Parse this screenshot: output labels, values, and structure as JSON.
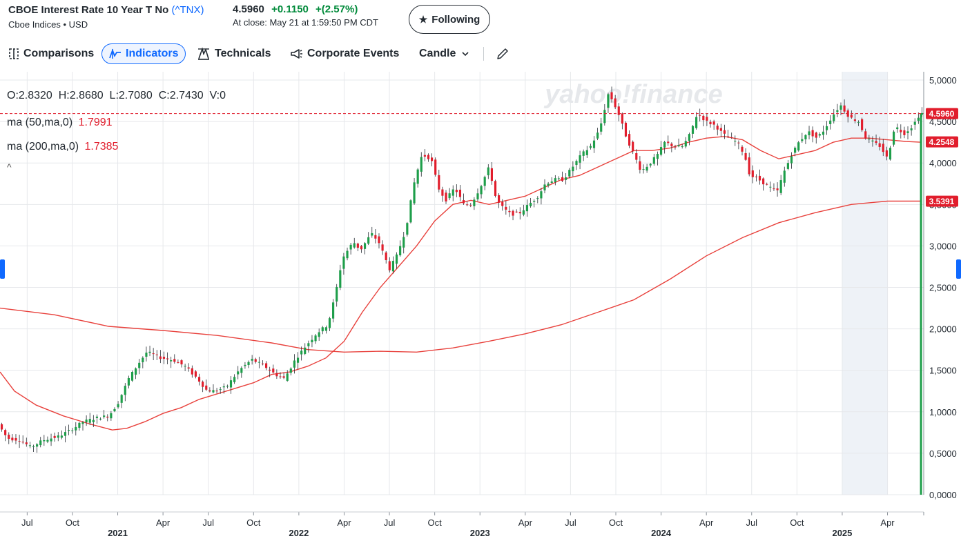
{
  "header": {
    "title": "CBOE Interest Rate 10 Year T No",
    "symbol": "(^TNX)",
    "subtitle": "Cboe Indices • USD",
    "price": "4.5960",
    "change": "+0.1150",
    "change_pct": "+(2.57%)",
    "close_time": "At close: May 21 at 1:59:50 PM CDT",
    "follow_label": "Following"
  },
  "toolbar": {
    "comparisons": "Comparisons",
    "indicators": "Indicators",
    "technicals": "Technicals",
    "corporate_events": "Corporate Events",
    "chart_type": "Candle"
  },
  "legend": {
    "ohlc": "O:2.8320  H:2.8680  L:2.7080  C:2.7430  V:0",
    "ma50_label": "ma (50,ma,0)",
    "ma50_value": "1.7991",
    "ma200_label": "ma (200,ma,0)",
    "ma200_value": "1.7385"
  },
  "watermark": "yahoo!finance",
  "colors": {
    "up": "#1e9e4a",
    "down": "#e11d2c",
    "ma": "#e8413c",
    "accent": "#0f69ff",
    "highlight": "#eef2f7"
  },
  "chart_data": {
    "type": "candlestick",
    "y_ticks": [
      "0,0000",
      "0,5000",
      "1,0000",
      "1,5000",
      "2,0000",
      "2,5000",
      "3,0000",
      "3,5000",
      "4,0000",
      "4,5000",
      "5,0000"
    ],
    "ylim": [
      0,
      5.1
    ],
    "x_ticks": [
      {
        "t": 0.15,
        "label": "Jul",
        "bold": false
      },
      {
        "t": 0.4,
        "label": "Oct",
        "bold": false
      },
      {
        "t": 0.65,
        "label": "2021",
        "bold": true
      },
      {
        "t": 0.9,
        "label": "Apr",
        "bold": false
      },
      {
        "t": 1.15,
        "label": "Jul",
        "bold": false
      },
      {
        "t": 1.4,
        "label": "Oct",
        "bold": false
      },
      {
        "t": 1.65,
        "label": "2022",
        "bold": true
      },
      {
        "t": 1.9,
        "label": "Apr",
        "bold": false
      },
      {
        "t": 2.15,
        "label": "Jul",
        "bold": false
      },
      {
        "t": 2.4,
        "label": "Oct",
        "bold": false
      },
      {
        "t": 2.65,
        "label": "2023",
        "bold": true
      },
      {
        "t": 2.9,
        "label": "Apr",
        "bold": false
      },
      {
        "t": 3.15,
        "label": "Jul",
        "bold": false
      },
      {
        "t": 3.4,
        "label": "Oct",
        "bold": false
      },
      {
        "t": 3.65,
        "label": "2024",
        "bold": true
      },
      {
        "t": 3.9,
        "label": "Apr",
        "bold": false
      },
      {
        "t": 4.15,
        "label": "Jul",
        "bold": false
      },
      {
        "t": 4.4,
        "label": "Oct",
        "bold": false
      },
      {
        "t": 4.65,
        "label": "2025",
        "bold": true
      },
      {
        "t": 4.9,
        "label": "Apr",
        "bold": false
      }
    ],
    "price_path": [
      [
        0.0,
        0.85
      ],
      [
        0.05,
        0.68
      ],
      [
        0.12,
        0.66
      ],
      [
        0.18,
        0.57
      ],
      [
        0.25,
        0.66
      ],
      [
        0.33,
        0.7
      ],
      [
        0.4,
        0.78
      ],
      [
        0.47,
        0.88
      ],
      [
        0.55,
        0.93
      ],
      [
        0.61,
        0.95
      ],
      [
        0.66,
        1.1
      ],
      [
        0.72,
        1.4
      ],
      [
        0.78,
        1.6
      ],
      [
        0.82,
        1.72
      ],
      [
        0.9,
        1.65
      ],
      [
        0.97,
        1.62
      ],
      [
        1.03,
        1.55
      ],
      [
        1.1,
        1.4
      ],
      [
        1.15,
        1.26
      ],
      [
        1.2,
        1.25
      ],
      [
        1.26,
        1.3
      ],
      [
        1.33,
        1.5
      ],
      [
        1.4,
        1.63
      ],
      [
        1.47,
        1.55
      ],
      [
        1.53,
        1.45
      ],
      [
        1.58,
        1.4
      ],
      [
        1.64,
        1.63
      ],
      [
        1.7,
        1.8
      ],
      [
        1.76,
        1.95
      ],
      [
        1.82,
        2.05
      ],
      [
        1.86,
        2.4
      ],
      [
        1.9,
        2.85
      ],
      [
        1.96,
        3.05
      ],
      [
        2.0,
        2.95
      ],
      [
        2.06,
        3.15
      ],
      [
        2.1,
        3.05
      ],
      [
        2.16,
        2.72
      ],
      [
        2.2,
        2.88
      ],
      [
        2.25,
        3.2
      ],
      [
        2.3,
        3.8
      ],
      [
        2.34,
        4.1
      ],
      [
        2.39,
        4.05
      ],
      [
        2.43,
        3.7
      ],
      [
        2.47,
        3.55
      ],
      [
        2.52,
        3.7
      ],
      [
        2.57,
        3.5
      ],
      [
        2.61,
        3.5
      ],
      [
        2.66,
        3.7
      ],
      [
        2.71,
        3.95
      ],
      [
        2.75,
        3.55
      ],
      [
        2.79,
        3.45
      ],
      [
        2.83,
        3.38
      ],
      [
        2.88,
        3.4
      ],
      [
        2.93,
        3.5
      ],
      [
        2.98,
        3.6
      ],
      [
        3.02,
        3.75
      ],
      [
        3.07,
        3.8
      ],
      [
        3.12,
        3.8
      ],
      [
        3.17,
        3.95
      ],
      [
        3.22,
        4.1
      ],
      [
        3.27,
        4.2
      ],
      [
        3.32,
        4.4
      ],
      [
        3.37,
        4.85
      ],
      [
        3.42,
        4.62
      ],
      [
        3.47,
        4.3
      ],
      [
        3.51,
        4.1
      ],
      [
        3.55,
        3.9
      ],
      [
        3.6,
        4.0
      ],
      [
        3.64,
        4.1
      ],
      [
        3.68,
        4.25
      ],
      [
        3.73,
        4.2
      ],
      [
        3.78,
        4.2
      ],
      [
        3.82,
        4.35
      ],
      [
        3.86,
        4.6
      ],
      [
        3.91,
        4.5
      ],
      [
        3.96,
        4.45
      ],
      [
        4.0,
        4.35
      ],
      [
        4.04,
        4.3
      ],
      [
        4.08,
        4.25
      ],
      [
        4.12,
        4.1
      ],
      [
        4.15,
        3.85
      ],
      [
        4.2,
        3.8
      ],
      [
        4.25,
        3.72
      ],
      [
        4.3,
        3.65
      ],
      [
        4.34,
        3.9
      ],
      [
        4.38,
        4.1
      ],
      [
        4.42,
        4.25
      ],
      [
        4.47,
        4.38
      ],
      [
        4.52,
        4.3
      ],
      [
        4.56,
        4.4
      ],
      [
        4.6,
        4.55
      ],
      [
        4.65,
        4.7
      ],
      [
        4.7,
        4.55
      ],
      [
        4.75,
        4.5
      ],
      [
        4.79,
        4.3
      ],
      [
        4.83,
        4.25
      ],
      [
        4.87,
        4.2
      ],
      [
        4.91,
        4.05
      ],
      [
        4.95,
        4.45
      ],
      [
        5.0,
        4.35
      ],
      [
        5.05,
        4.45
      ],
      [
        5.09,
        4.6
      ]
    ],
    "ma50_path": [
      [
        0.0,
        1.48
      ],
      [
        0.08,
        1.25
      ],
      [
        0.2,
        1.08
      ],
      [
        0.35,
        0.95
      ],
      [
        0.5,
        0.85
      ],
      [
        0.62,
        0.78
      ],
      [
        0.7,
        0.8
      ],
      [
        0.8,
        0.88
      ],
      [
        0.9,
        0.98
      ],
      [
        1.0,
        1.05
      ],
      [
        1.1,
        1.15
      ],
      [
        1.25,
        1.25
      ],
      [
        1.4,
        1.35
      ],
      [
        1.5,
        1.45
      ],
      [
        1.6,
        1.48
      ],
      [
        1.7,
        1.55
      ],
      [
        1.8,
        1.65
      ],
      [
        1.9,
        1.85
      ],
      [
        2.0,
        2.2
      ],
      [
        2.1,
        2.5
      ],
      [
        2.2,
        2.75
      ],
      [
        2.3,
        3.0
      ],
      [
        2.4,
        3.3
      ],
      [
        2.5,
        3.5
      ],
      [
        2.6,
        3.55
      ],
      [
        2.7,
        3.5
      ],
      [
        2.8,
        3.55
      ],
      [
        2.9,
        3.6
      ],
      [
        3.0,
        3.7
      ],
      [
        3.1,
        3.8
      ],
      [
        3.2,
        3.85
      ],
      [
        3.3,
        3.95
      ],
      [
        3.4,
        4.05
      ],
      [
        3.5,
        4.15
      ],
      [
        3.6,
        4.15
      ],
      [
        3.7,
        4.18
      ],
      [
        3.8,
        4.25
      ],
      [
        3.9,
        4.3
      ],
      [
        4.0,
        4.32
      ],
      [
        4.1,
        4.28
      ],
      [
        4.2,
        4.15
      ],
      [
        4.3,
        4.05
      ],
      [
        4.4,
        4.1
      ],
      [
        4.5,
        4.15
      ],
      [
        4.6,
        4.25
      ],
      [
        4.7,
        4.3
      ],
      [
        4.8,
        4.3
      ],
      [
        4.9,
        4.28
      ],
      [
        5.0,
        4.26
      ],
      [
        5.09,
        4.25
      ]
    ],
    "ma200_path": [
      [
        0.0,
        2.25
      ],
      [
        0.3,
        2.17
      ],
      [
        0.6,
        2.03
      ],
      [
        0.9,
        1.98
      ],
      [
        1.2,
        1.92
      ],
      [
        1.5,
        1.83
      ],
      [
        1.7,
        1.75
      ],
      [
        1.9,
        1.72
      ],
      [
        2.1,
        1.73
      ],
      [
        2.3,
        1.72
      ],
      [
        2.5,
        1.77
      ],
      [
        2.7,
        1.85
      ],
      [
        2.9,
        1.94
      ],
      [
        3.1,
        2.05
      ],
      [
        3.3,
        2.2
      ],
      [
        3.5,
        2.35
      ],
      [
        3.7,
        2.6
      ],
      [
        3.9,
        2.88
      ],
      [
        4.1,
        3.1
      ],
      [
        4.3,
        3.28
      ],
      [
        4.5,
        3.4
      ],
      [
        4.7,
        3.5
      ],
      [
        4.9,
        3.54
      ],
      [
        5.09,
        3.54
      ]
    ],
    "price_tags": [
      {
        "value": 4.596,
        "label": "4.5960"
      },
      {
        "value": 4.2548,
        "label": "4.2548"
      },
      {
        "value": 3.5391,
        "label": "3.5391"
      }
    ],
    "last_price": 4.596,
    "highlight_range": [
      4.65,
      4.9
    ]
  }
}
